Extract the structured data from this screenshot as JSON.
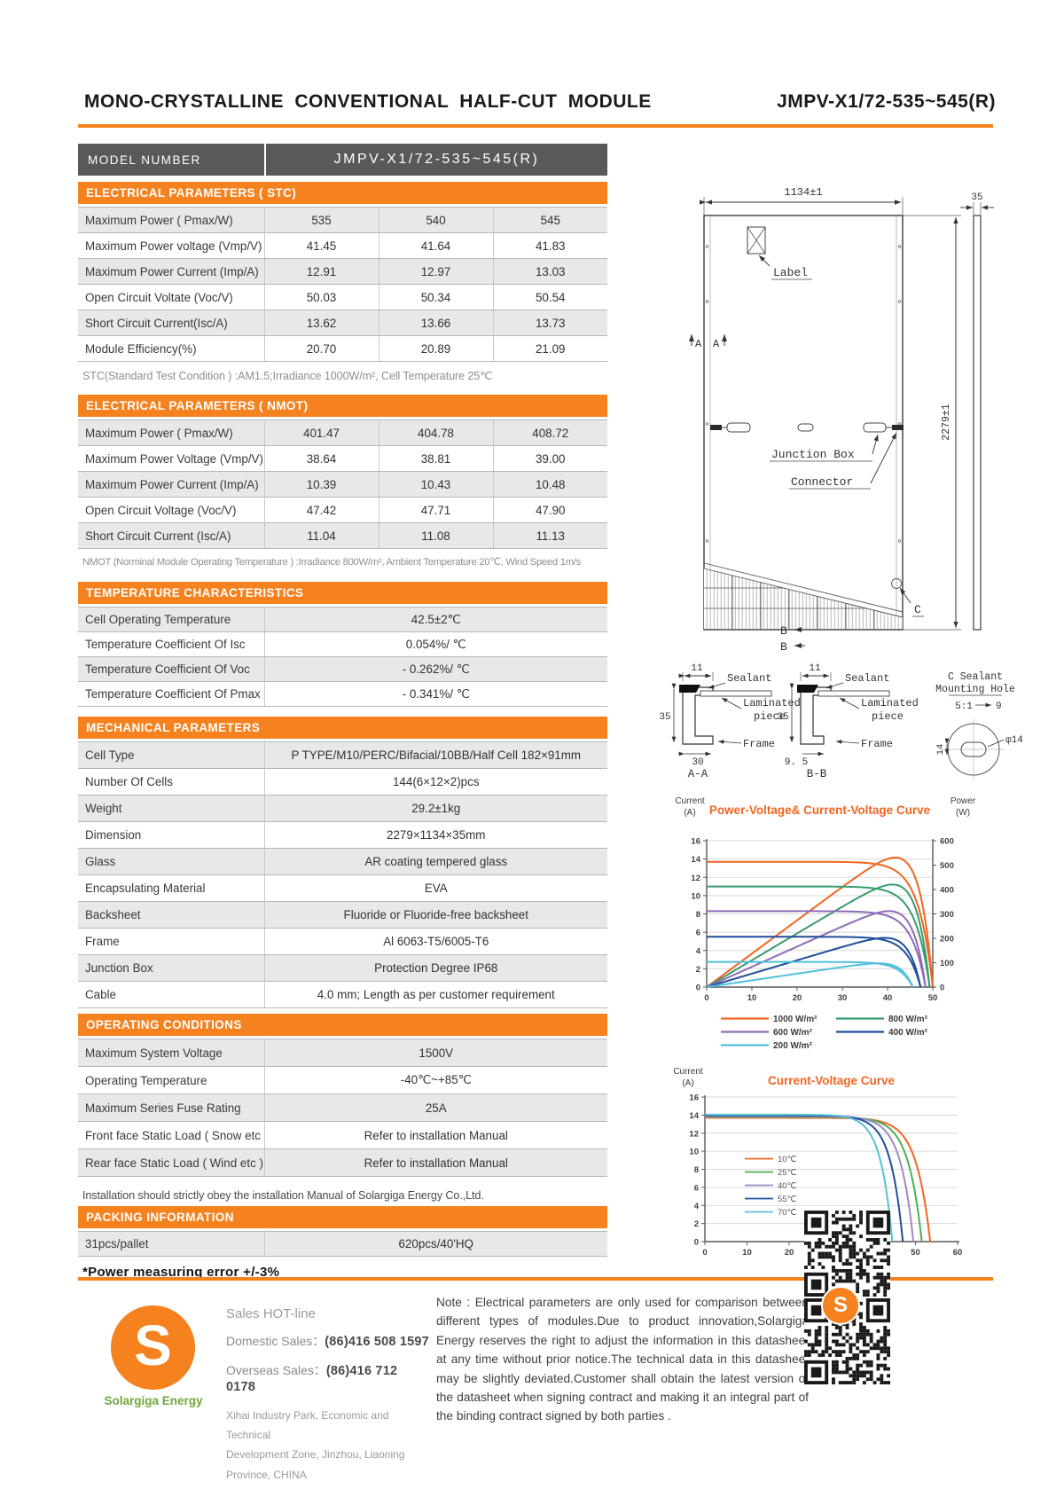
{
  "header": {
    "title": "MONO-CRYSTALLINE  CONVENTIONAL  HALF-CUT  MODULE",
    "model": "JMPV-X1/72-535~545(R)"
  },
  "model_row": {
    "label": "MODEL  NUMBER",
    "value": "JMPV-X1/72-535~545(R)"
  },
  "stc": {
    "header": "ELECTRICAL PARAMETERS ( STC)",
    "rows": [
      {
        "label": "Maximum Power ( Pmax/W)",
        "values": [
          "535",
          "540",
          "545"
        ]
      },
      {
        "label": "Maximum Power voltage (Vmp/V)",
        "values": [
          "41.45",
          "41.64",
          "41.83"
        ]
      },
      {
        "label": "Maximum Power Current (Imp/A)",
        "values": [
          "12.91",
          "12.97",
          "13.03"
        ]
      },
      {
        "label": "Open Circuit Voltate (Voc/V)",
        "values": [
          "50.03",
          "50.34",
          "50.54"
        ]
      },
      {
        "label": "Short Circuit Current(Isc/A)",
        "values": [
          "13.62",
          "13.66",
          "13.73"
        ]
      },
      {
        "label": "Module Efficiency(%)",
        "values": [
          "20.70",
          "20.89",
          "21.09"
        ]
      }
    ],
    "note": "STC(Standard Test Condition  ) :AM1.5;Irradiance 1000W/m²,  Cell Temperature 25℃"
  },
  "nmot": {
    "header": "ELECTRICAL PARAMETERS ( NMOT)",
    "rows": [
      {
        "label": "Maximum Power ( Pmax/W)",
        "values": [
          "401.47",
          "404.78",
          "408.72"
        ]
      },
      {
        "label": "Maximum Power Voltage (Vmp/V)",
        "values": [
          "38.64",
          "38.81",
          "39.00"
        ]
      },
      {
        "label": "Maximum Power Current (Imp/A)",
        "values": [
          "10.39",
          "10.43",
          "10.48"
        ]
      },
      {
        "label": "Open Circuit Voltage (Voc/V)",
        "values": [
          "47.42",
          "47.71",
          "47.90"
        ]
      },
      {
        "label": "Short Circuit Current (Isc/A)",
        "values": [
          "11.04",
          "11.08",
          "11.13"
        ]
      }
    ],
    "note": "NMOT  (Norminal Module Operating Temperature ) :Irradiance 800W/m²,  Ambient Temperature 20℃,  Wind Speed 1m/s"
  },
  "temperature": {
    "header": "TEMPERATURE CHARACTERISTICS",
    "rows": [
      {
        "label": "Cell Operating Temperature",
        "value": "42.5±2℃"
      },
      {
        "label": "Temperature Coefficient Of Isc",
        "value": "0.054%/ ℃"
      },
      {
        "label": "Temperature Coefficient Of Voc",
        "value": "- 0.262%/ ℃"
      },
      {
        "label": "Temperature Coefficient Of Pmax",
        "value": "- 0.341%/ ℃"
      }
    ]
  },
  "mechanical": {
    "header": "MECHANICAL PARAMETERS",
    "rows": [
      {
        "label": "Cell Type",
        "value": "P TYPE/M10/PERC/Bifacial/10BB/Half Cell 182×91mm"
      },
      {
        "label": "Number Of Cells",
        "value": "144(6×12×2)pcs"
      },
      {
        "label": "Weight",
        "value": "29.2±1kg"
      },
      {
        "label": "Dimension",
        "value": "2279×1134×35mm"
      },
      {
        "label": "Glass",
        "value": "AR coating tempered glass"
      },
      {
        "label": "Encapsulating Material",
        "value": "EVA"
      },
      {
        "label": "Backsheet",
        "value": "Fluoride or Fluoride-free backsheet"
      },
      {
        "label": "Frame",
        "value": "Al 6063-T5/6005-T6"
      },
      {
        "label": "Junction Box",
        "value": "Protection Degree IP68"
      },
      {
        "label": "Cable",
        "value": "4.0 mm;  Length as per customer requirement"
      }
    ]
  },
  "operating": {
    "header": "OPERATING CONDITIONS",
    "rows": [
      {
        "label": "Maximum System Voltage",
        "value": "1500V"
      },
      {
        "label": "Operating Temperature",
        "value": "-40℃~+85℃"
      },
      {
        "label": "Maximum Series Fuse Rating",
        "value": "25A"
      },
      {
        "label": "Front face Static Load ( Snow etc }",
        "value": "Refer to installation  Manual"
      },
      {
        "label": "Rear face Static Load ( Wind etc )",
        "value": "Refer to installation  Manual"
      }
    ],
    "note": "Installation should strictly obey the installation Manual of Solargiga  Energy Co.,Ltd."
  },
  "packing": {
    "header": "PACKING INFORMATION",
    "rows": [
      {
        "label": "31pcs/pallet",
        "value": "620pcs/40'HQ"
      }
    ]
  },
  "power_note": "*Power measuring error  +/-3%",
  "drawing": {
    "dim_width": "1134±1",
    "dim_thickness": "35",
    "dim_height": "2279±1",
    "label": "Label",
    "junction_box": "Junction Box",
    "connector": "Connector",
    "section_mark_a1": "A",
    "section_mark_a2": "A",
    "mark_b1": "B",
    "mark_b2": "B",
    "mark_c": "C",
    "aa_dim_11": "11",
    "aa_sealant": "Sealant",
    "aa_laminated": "Laminated",
    "aa_piece": "piece",
    "aa_dim_35": "35",
    "aa_frame": "Frame",
    "aa_dim_30": "30",
    "aa_name": "A-A",
    "bb_dim_11": "11",
    "bb_sealant": "Sealant",
    "bb_laminated": "Laminated",
    "bb_piece": "piece",
    "bb_dim_35": "35",
    "bb_frame": "Frame",
    "bb_dim_95": "9. 5",
    "bb_name": "B-B",
    "detail_title": "C Sealant",
    "detail_sub": "Mounting Hole",
    "detail_scale": "5:1",
    "detail_dim_9": "9",
    "detail_dim_14": "14",
    "detail_dim_phi14": "φ14"
  },
  "chart_data": [
    {
      "type": "line",
      "title": "Power-Voltage& Current-Voltage Curve",
      "ylabel_left_lines": [
        "Current",
        "(A)"
      ],
      "ylabel_right_lines": [
        "Power",
        "(W)"
      ],
      "xlim": [
        0,
        50
      ],
      "xticks": [
        0,
        10,
        20,
        30,
        40,
        50
      ],
      "ylim_left": [
        0,
        16
      ],
      "yticks_left": [
        0,
        2,
        4,
        6,
        8,
        10,
        12,
        14,
        16
      ],
      "ylim_right": [
        0,
        600
      ],
      "yticks_right": [
        0,
        100,
        200,
        300,
        400,
        500,
        600
      ],
      "grid": true,
      "legend_position": "bottom",
      "curves": [
        "current-voltage",
        "power-voltage"
      ],
      "series": [
        {
          "name": "1000 W/m²",
          "color": "#f26522",
          "isc": 13.7,
          "voc": 50.0,
          "vmp": 41.5,
          "pmax": 535
        },
        {
          "name": "800 W/m²",
          "color": "#3a9b6e",
          "isc": 11.0,
          "voc": 49.3,
          "vmp": 41.2,
          "pmax": 430
        },
        {
          "name": "600 W/m²",
          "color": "#8d6cb8",
          "isc": 8.3,
          "voc": 48.4,
          "vmp": 40.8,
          "pmax": 322
        },
        {
          "name": "400 W/m²",
          "color": "#1f4e9c",
          "isc": 5.5,
          "voc": 47.3,
          "vmp": 40.2,
          "pmax": 212
        },
        {
          "name": "200 W/m²",
          "color": "#4fc0dc",
          "isc": 2.75,
          "voc": 45.6,
          "vmp": 39.0,
          "pmax": 103
        }
      ]
    },
    {
      "type": "line",
      "title": "Current-Voltage Curve",
      "ylabel_left_lines": [
        "Current",
        "(A)"
      ],
      "xlim": [
        0,
        60
      ],
      "xticks": [
        0,
        10,
        20,
        30,
        40,
        50,
        60
      ],
      "ylim_left": [
        0,
        16
      ],
      "yticks_left": [
        0,
        2,
        4,
        6,
        8,
        10,
        12,
        14,
        16
      ],
      "grid": true,
      "legend_position": "inside-left",
      "curves": [
        "current-voltage"
      ],
      "series": [
        {
          "name": "10℃",
          "color": "#f26522",
          "isc": 13.7,
          "voc": 53.5
        },
        {
          "name": "25℃",
          "color": "#4caf50",
          "isc": 13.8,
          "voc": 51.5
        },
        {
          "name": "40℃",
          "color": "#9e8cc0",
          "isc": 13.87,
          "voc": 49.5
        },
        {
          "name": "55℃",
          "color": "#1f4e9c",
          "isc": 13.95,
          "voc": 47.0
        },
        {
          "name": "70℃",
          "color": "#56c1d8",
          "isc": 14.05,
          "voc": 44.5
        }
      ]
    }
  ],
  "footer": {
    "logo_letter": "S",
    "logo_name": "Solargiga Energy",
    "hotline_title": "Sales HOT-line",
    "domestic_label": "Domestic Sales：",
    "domestic_value": "(86)416 508 1597",
    "overseas_label": "Overseas Sales：",
    "overseas_value": "(86)416 712 0178",
    "address_lines": [
      "Xihai Industry Park, Economic and Technical",
      "Development  Zone, Jinzhou, Liaoning",
      "Province, CHINA"
    ],
    "note": "Note :  Electrical parameters are only used for comparison between different types of modules.Due to product innovation,Solargiga Energy reserves the right to adjust the information in this datasheet at any time without prior notice.The technical data in this datasheet may be slightly deviated.Customer shall obtain the latest version of the datasheet when signing contract and making it an integral part of the binding contract signed by both parties ."
  },
  "colors": {
    "accent": "#f5821f",
    "header_gray": "#58595b",
    "row_gray": "#e8e8e9"
  }
}
